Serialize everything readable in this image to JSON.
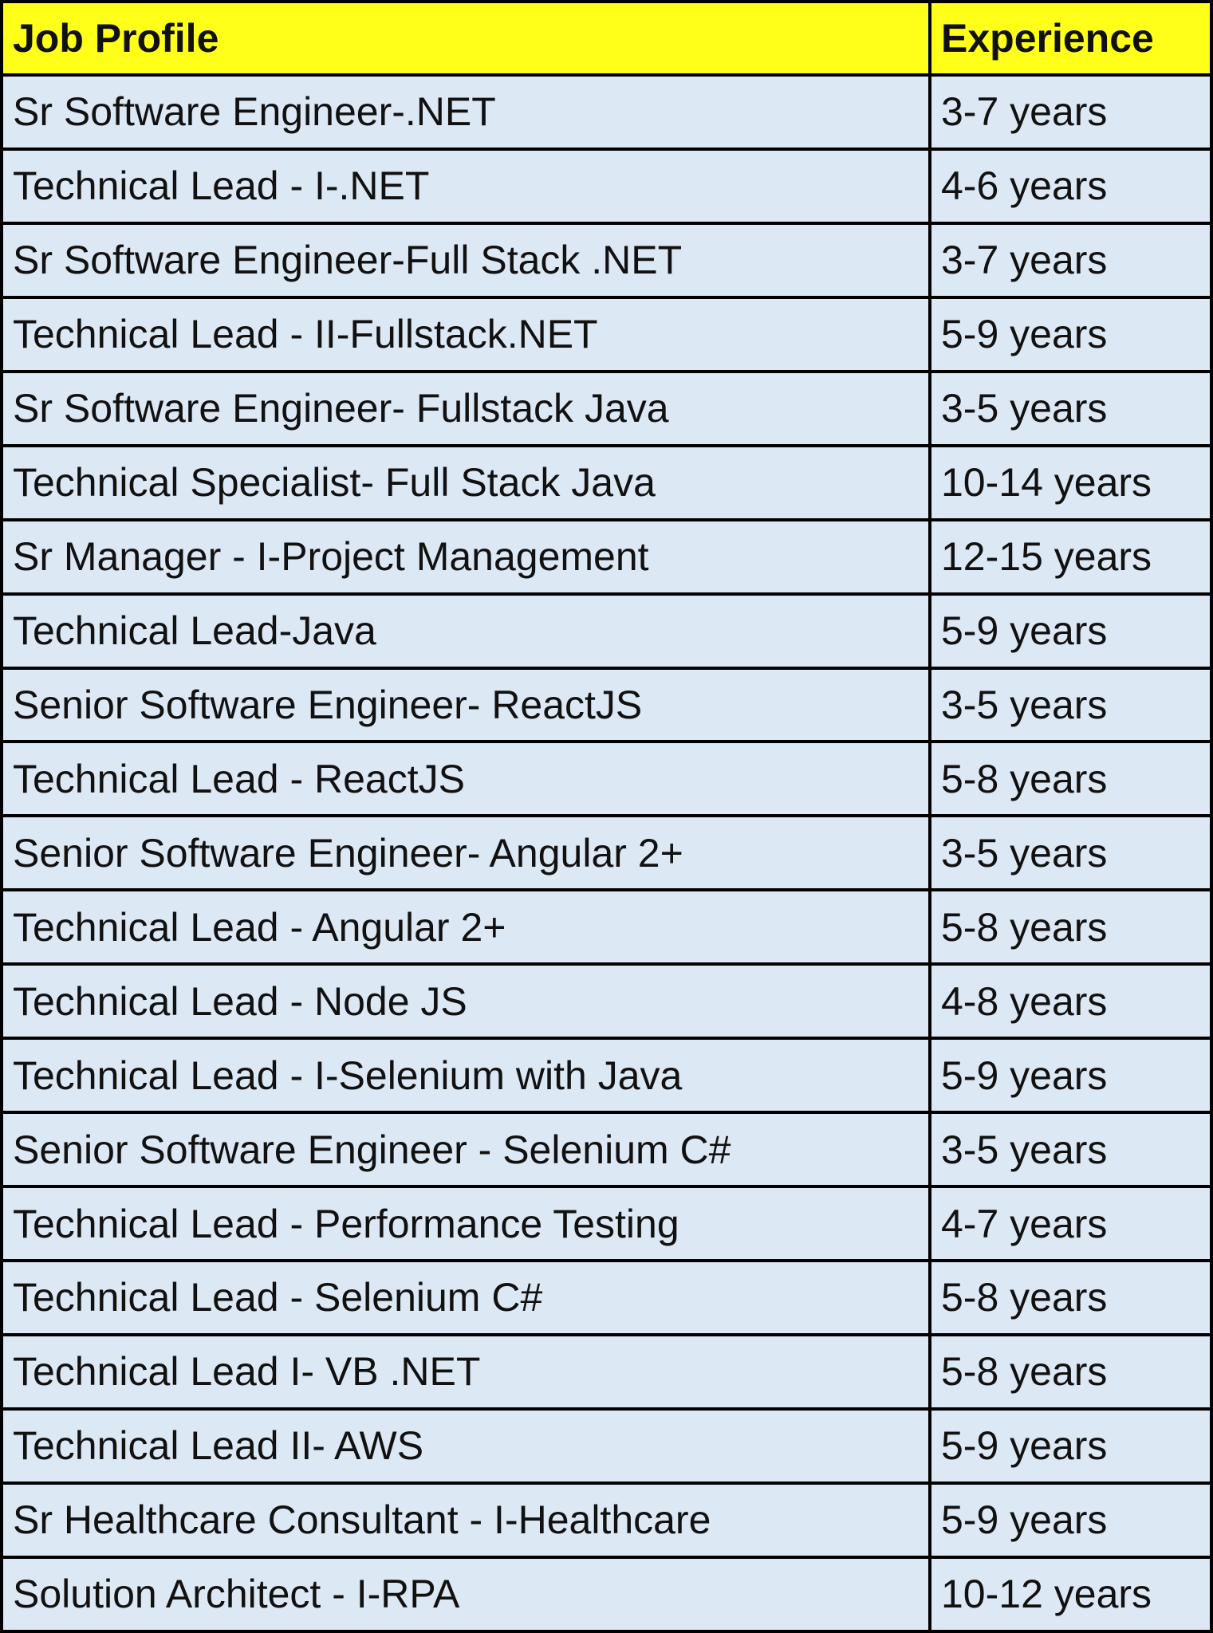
{
  "table": {
    "columns": [
      "Job Profile",
      "Experience"
    ],
    "rows": [
      [
        "Sr Software Engineer-.NET",
        "3-7 years"
      ],
      [
        "Technical Lead - I-.NET",
        "4-6 years"
      ],
      [
        "Sr Software Engineer-Full Stack .NET",
        "3-7 years"
      ],
      [
        "Technical Lead - II-Fullstack.NET",
        "5-9 years"
      ],
      [
        "Sr Software Engineer- Fullstack Java",
        "3-5 years"
      ],
      [
        "Technical Specialist- Full Stack Java",
        "10-14 years"
      ],
      [
        "Sr Manager - I-Project Management",
        "12-15 years"
      ],
      [
        "Technical Lead-Java",
        "5-9 years"
      ],
      [
        "Senior Software Engineer- ReactJS",
        "3-5 years"
      ],
      [
        "Technical Lead - ReactJS",
        "5-8 years"
      ],
      [
        "Senior Software Engineer- Angular 2+",
        "3-5 years"
      ],
      [
        "Technical Lead - Angular 2+",
        "5-8 years"
      ],
      [
        "Technical Lead - Node JS",
        "4-8 years"
      ],
      [
        "Technical Lead - I-Selenium with Java",
        "5-9 years"
      ],
      [
        "Senior Software Engineer - Selenium C#",
        "3-5 years"
      ],
      [
        "Technical Lead - Performance Testing",
        "4-7 years"
      ],
      [
        "Technical Lead - Selenium C#",
        "5-8 years"
      ],
      [
        "Technical Lead I- VB .NET",
        "5-8 years"
      ],
      [
        "Technical Lead II- AWS",
        "5-9 years"
      ],
      [
        "Sr Healthcare Consultant - I-Healthcare",
        "5-9 years"
      ],
      [
        "Solution Architect - I-RPA",
        "10-12 years"
      ]
    ]
  }
}
